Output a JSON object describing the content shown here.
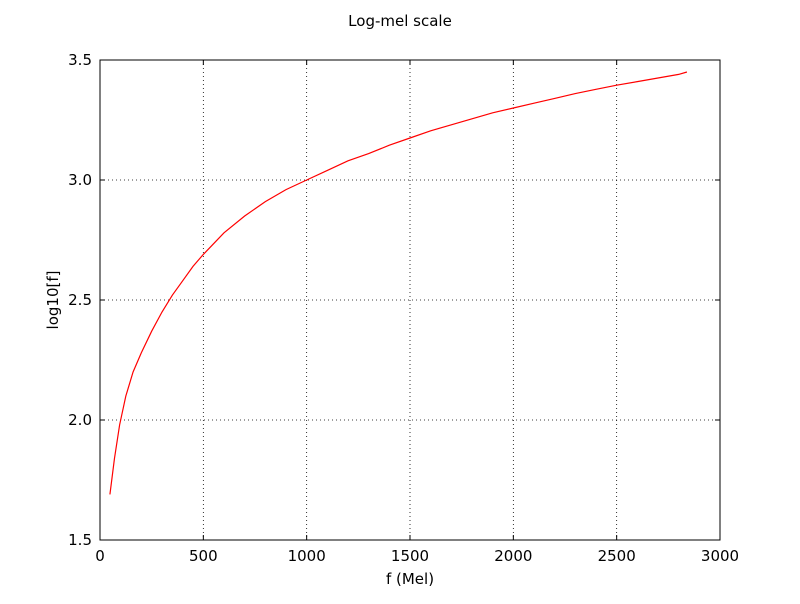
{
  "chart_data": {
    "type": "line",
    "title": "Log-mel scale",
    "xlabel": "f (Mel)",
    "ylabel": "log10[f]",
    "xlim": [
      0,
      3000
    ],
    "ylim": [
      1.5,
      3.5
    ],
    "xticks": [
      0,
      500,
      1000,
      1500,
      2000,
      2500,
      3000
    ],
    "yticks": [
      1.5,
      2.0,
      2.5,
      3.0,
      3.5
    ],
    "xtick_labels": [
      "0",
      "500",
      "1000",
      "1500",
      "2000",
      "2500",
      "3000"
    ],
    "ytick_labels": [
      "1.5",
      "2.0",
      "2.5",
      "3.0",
      "3.5"
    ],
    "grid": true,
    "line_color": "#ff0000",
    "series": [
      {
        "x": [
          48,
          70,
          95,
          125,
          160,
          200,
          250,
          300,
          350,
          400,
          450,
          500,
          600,
          700,
          800,
          900,
          1000,
          1100,
          1200,
          1300,
          1400,
          1500,
          1600,
          1700,
          1800,
          1900,
          2000,
          2100,
          2200,
          2300,
          2400,
          2500,
          2600,
          2700,
          2800,
          2840
        ],
        "y": [
          1.69,
          1.84,
          1.98,
          2.1,
          2.2,
          2.28,
          2.37,
          2.45,
          2.52,
          2.58,
          2.64,
          2.69,
          2.78,
          2.85,
          2.91,
          2.96,
          3.0,
          3.04,
          3.08,
          3.11,
          3.145,
          3.175,
          3.205,
          3.23,
          3.255,
          3.28,
          3.3,
          3.32,
          3.34,
          3.36,
          3.378,
          3.395,
          3.41,
          3.425,
          3.44,
          3.45
        ]
      }
    ]
  }
}
